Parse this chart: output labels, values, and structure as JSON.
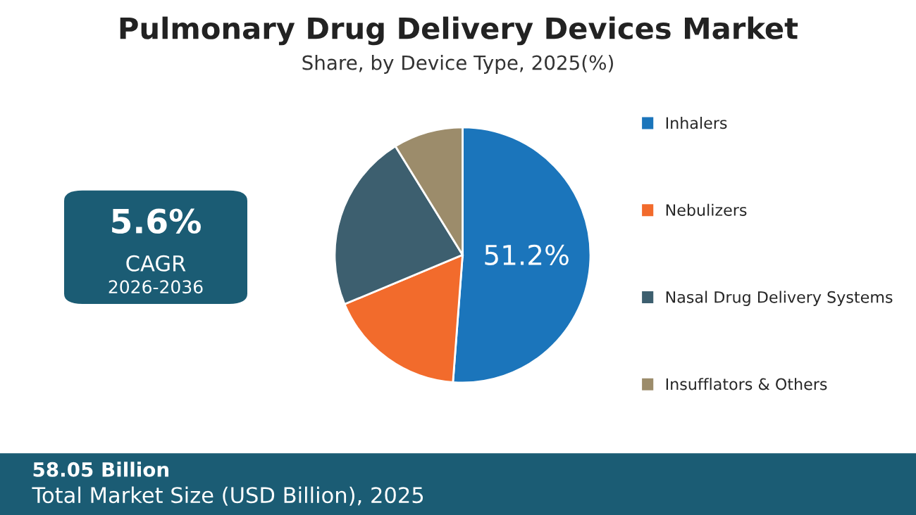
{
  "chart_data": {
    "type": "pie",
    "title": "Pulmonary Drug Delivery Devices Market",
    "subtitle": "Share, by Device Type, 2025(%)",
    "categories": [
      "Inhalers",
      "Nebulizers",
      "Nasal Drug Delivery Systems",
      "Insufflators & Others"
    ],
    "values": [
      51.2,
      17.5,
      22.5,
      8.8
    ],
    "colors": [
      "#1b75bb",
      "#f26b2c",
      "#3d5f6f",
      "#9c8c6b"
    ],
    "value_labels": [
      "51.2%",
      null,
      null,
      null
    ],
    "legend": "right",
    "annotations": [
      "5.6%",
      "CAGR",
      "2026-2036",
      "58.05 Billion",
      "Total Market Size (USD Billion), 2025"
    ]
  }
}
